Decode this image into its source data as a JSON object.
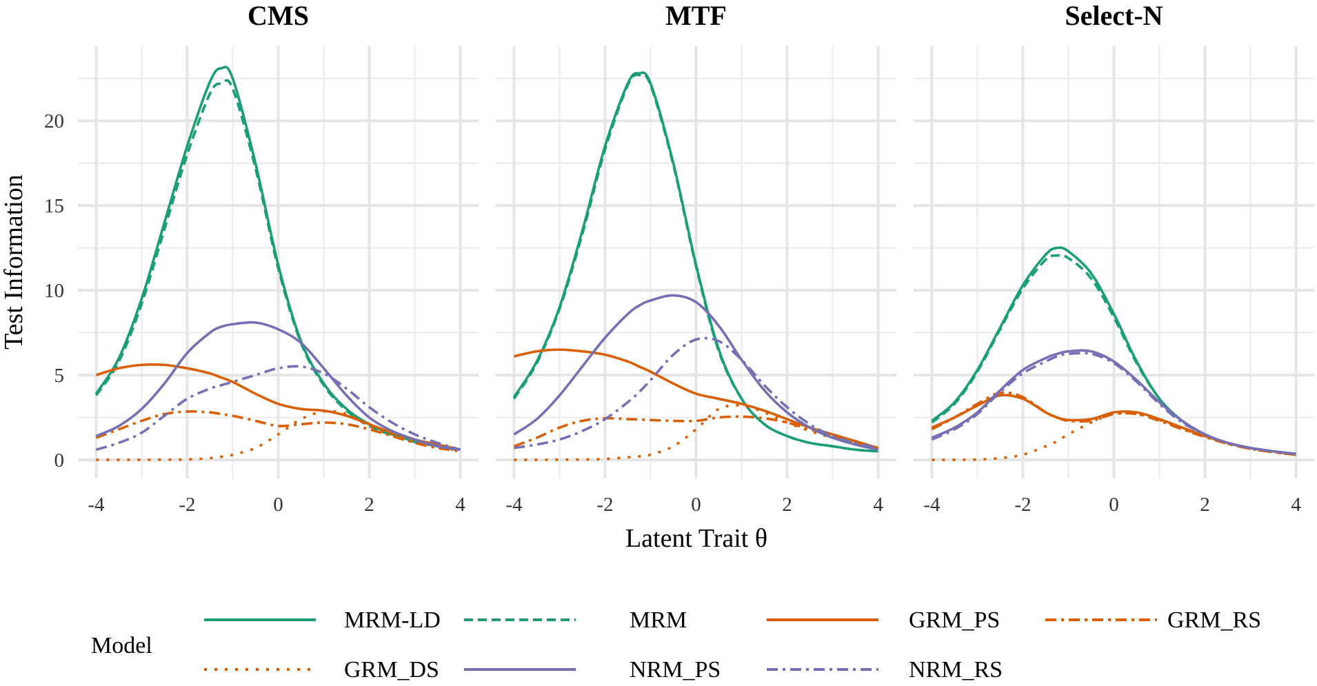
{
  "chart_data": [
    {
      "type": "line",
      "title": "CMS",
      "xlim": [
        -4.4,
        4.4
      ],
      "ylim": [
        -1.1,
        24.4
      ],
      "x": [
        -4,
        -3.5,
        -3,
        -2.5,
        -2,
        -1.5,
        -1.25,
        -1,
        -0.5,
        0,
        0.5,
        1,
        1.5,
        2,
        2.5,
        3,
        3.5,
        4
      ],
      "series": [
        {
          "name": "MRM-LD",
          "values": [
            3.9,
            6,
            9.5,
            14,
            18.5,
            22.3,
            23.1,
            22.5,
            17.5,
            11.5,
            7,
            4.5,
            3,
            2.1,
            1.5,
            1.1,
            0.8,
            0.6
          ]
        },
        {
          "name": "MRM",
          "values": [
            3.8,
            5.8,
            9.2,
            13.6,
            18,
            21.6,
            22.2,
            21.9,
            17.2,
            11.3,
            6.9,
            4.4,
            2.9,
            2.0,
            1.45,
            1.05,
            0.8,
            0.6
          ]
        },
        {
          "name": "GRM_PS",
          "values": [
            5,
            5.4,
            5.6,
            5.6,
            5.4,
            5.1,
            4.85,
            4.6,
            3.9,
            3.3,
            3.0,
            2.9,
            2.6,
            2.1,
            1.6,
            1.2,
            0.9,
            0.6
          ]
        },
        {
          "name": "GRM_RS",
          "values": [
            1.3,
            1.8,
            2.3,
            2.7,
            2.85,
            2.8,
            2.7,
            2.6,
            2.3,
            2.0,
            2.1,
            2.2,
            2.1,
            1.8,
            1.4,
            1.0,
            0.7,
            0.5
          ]
        },
        {
          "name": "GRM_DS",
          "values": [
            0,
            0,
            0,
            0.01,
            0.02,
            0.1,
            0.18,
            0.3,
            0.7,
            1.5,
            2.4,
            2.85,
            2.7,
            2.0,
            1.5,
            1.1,
            0.8,
            0.5
          ]
        },
        {
          "name": "NRM_PS",
          "values": [
            1.4,
            2.0,
            3.0,
            4.5,
            6.3,
            7.5,
            7.85,
            8.0,
            8.1,
            7.7,
            6.9,
            5.4,
            3.8,
            2.5,
            1.7,
            1.2,
            0.8,
            0.6
          ]
        },
        {
          "name": "NRM_RS",
          "values": [
            0.6,
            1.0,
            1.6,
            2.6,
            3.6,
            4.2,
            4.4,
            4.6,
            5.0,
            5.4,
            5.5,
            5.1,
            4.2,
            3.1,
            2.2,
            1.5,
            1.0,
            0.6
          ]
        }
      ]
    },
    {
      "type": "line",
      "title": "MTF",
      "xlim": [
        -4.4,
        4.4
      ],
      "ylim": [
        -1.1,
        24.4
      ],
      "x": [
        -4,
        -3.5,
        -3,
        -2.5,
        -2,
        -1.5,
        -1.25,
        -1,
        -0.5,
        0,
        0.5,
        1,
        1.5,
        2,
        2.5,
        3,
        3.5,
        4
      ],
      "series": [
        {
          "name": "MRM-LD",
          "values": [
            3.7,
            5.8,
            9,
            13.5,
            18.5,
            22.2,
            22.8,
            22.2,
            17.5,
            11.5,
            6.5,
            3.6,
            2.1,
            1.4,
            1.0,
            0.8,
            0.6,
            0.5
          ]
        },
        {
          "name": "MRM",
          "values": [
            3.6,
            5.7,
            8.9,
            13.3,
            18.3,
            22.1,
            22.7,
            22.1,
            17.4,
            11.4,
            6.4,
            3.6,
            2.1,
            1.4,
            1.0,
            0.8,
            0.6,
            0.5
          ]
        },
        {
          "name": "GRM_PS",
          "values": [
            6.1,
            6.4,
            6.5,
            6.4,
            6.2,
            5.8,
            5.5,
            5.2,
            4.5,
            3.9,
            3.6,
            3.3,
            2.9,
            2.4,
            1.9,
            1.5,
            1.1,
            0.7
          ]
        },
        {
          "name": "GRM_RS",
          "values": [
            0.8,
            1.3,
            1.9,
            2.3,
            2.45,
            2.4,
            2.38,
            2.35,
            2.3,
            2.3,
            2.5,
            2.55,
            2.45,
            2.2,
            1.8,
            1.4,
            1.0,
            0.7
          ]
        },
        {
          "name": "GRM_DS",
          "values": [
            0,
            0,
            0.01,
            0.02,
            0.05,
            0.15,
            0.2,
            0.3,
            0.8,
            1.8,
            3.0,
            3.2,
            2.8,
            2.2,
            1.7,
            1.3,
            1.0,
            0.7
          ]
        },
        {
          "name": "NRM_PS",
          "values": [
            1.5,
            2.4,
            3.8,
            5.5,
            7.2,
            8.6,
            9.1,
            9.4,
            9.7,
            9.3,
            7.9,
            5.9,
            4.1,
            2.8,
            1.9,
            1.3,
            0.9,
            0.6
          ]
        },
        {
          "name": "NRM_RS",
          "values": [
            0.7,
            0.9,
            1.2,
            1.7,
            2.4,
            3.4,
            4.0,
            4.7,
            6.2,
            7.1,
            7.0,
            5.9,
            4.4,
            3.1,
            2.1,
            1.4,
            1.0,
            0.7
          ]
        }
      ]
    },
    {
      "type": "line",
      "title": "Select-N",
      "xlim": [
        -4.4,
        4.4
      ],
      "ylim": [
        -1.1,
        24.4
      ],
      "x": [
        -4,
        -3.5,
        -3,
        -2.5,
        -2,
        -1.5,
        -1.25,
        -1,
        -0.5,
        0,
        0.5,
        1,
        1.5,
        2,
        2.5,
        3,
        3.5,
        4
      ],
      "series": [
        {
          "name": "MRM-LD",
          "values": [
            2.3,
            3.4,
            5.3,
            7.8,
            10.3,
            12.1,
            12.5,
            12.3,
            11,
            8.6,
            5.8,
            3.6,
            2.3,
            1.5,
            1.0,
            0.7,
            0.5,
            0.35
          ]
        },
        {
          "name": "MRM",
          "values": [
            2.2,
            3.3,
            5.2,
            7.7,
            10.1,
            11.8,
            12.05,
            11.9,
            10.7,
            8.4,
            5.7,
            3.6,
            2.3,
            1.5,
            1.0,
            0.7,
            0.5,
            0.35
          ]
        },
        {
          "name": "GRM_PS",
          "values": [
            1.9,
            2.5,
            3.2,
            3.8,
            3.6,
            2.8,
            2.5,
            2.35,
            2.4,
            2.8,
            2.8,
            2.4,
            1.9,
            1.4,
            1.0,
            0.7,
            0.5,
            0.3
          ]
        },
        {
          "name": "GRM_RS",
          "values": [
            1.8,
            2.5,
            3.3,
            3.95,
            3.7,
            2.8,
            2.5,
            2.3,
            2.3,
            2.7,
            2.7,
            2.3,
            1.8,
            1.35,
            0.95,
            0.65,
            0.45,
            0.3
          ]
        },
        {
          "name": "GRM_DS",
          "values": [
            0,
            0,
            0.02,
            0.1,
            0.3,
            0.8,
            1.1,
            1.5,
            2.2,
            2.7,
            2.7,
            2.35,
            1.85,
            1.35,
            0.95,
            0.65,
            0.45,
            0.3
          ]
        },
        {
          "name": "NRM_PS",
          "values": [
            1.3,
            1.9,
            2.8,
            4.1,
            5.3,
            6.0,
            6.25,
            6.4,
            6.4,
            5.8,
            4.7,
            3.4,
            2.3,
            1.5,
            1.0,
            0.7,
            0.5,
            0.35
          ]
        },
        {
          "name": "NRM_RS",
          "values": [
            1.2,
            1.8,
            2.7,
            4.0,
            5.1,
            5.8,
            6.1,
            6.25,
            6.25,
            5.7,
            4.6,
            3.3,
            2.2,
            1.5,
            1.0,
            0.7,
            0.5,
            0.35
          ]
        }
      ]
    }
  ],
  "x_ticks": [
    -4,
    -2,
    0,
    2,
    4
  ],
  "y_ticks": [
    0,
    5,
    10,
    15,
    20
  ],
  "grid": true,
  "xlabel": "Latent Trait  θ",
  "ylabel": "Test Information",
  "legend": {
    "title": "Model",
    "placement": "bottom",
    "items": [
      {
        "name": "MRM-LD",
        "color": "#1B9E77",
        "linetype": "solid"
      },
      {
        "name": "MRM",
        "color": "#1B9E77",
        "linetype": "dashed"
      },
      {
        "name": "GRM_PS",
        "color": "#D95F02",
        "linetype": "solid"
      },
      {
        "name": "GRM_RS",
        "color": "#D95F02",
        "linetype": "dotdash"
      },
      {
        "name": "GRM_DS",
        "color": "#D95F02",
        "linetype": "dotted"
      },
      {
        "name": "NRM_PS",
        "color": "#7570B3",
        "linetype": "solid"
      },
      {
        "name": "NRM_RS",
        "color": "#7570B3",
        "linetype": "dotdash"
      }
    ]
  }
}
